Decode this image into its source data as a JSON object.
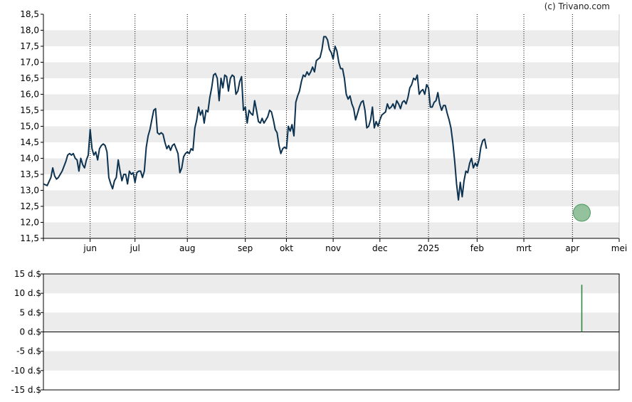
{
  "credit": "(c) Trivano.com",
  "colors": {
    "line": "#0e3350",
    "band": "#ececec",
    "axis": "#000000",
    "grid": "#000000",
    "marker": "#6fae7c",
    "bar": "#2e8b3e"
  },
  "chart_data": [
    {
      "type": "line",
      "title": "",
      "xlabel": "",
      "ylabel": "",
      "ylim": [
        11.5,
        18.5
      ],
      "yticks": [
        "11,5",
        "12,0",
        "12,5",
        "13,0",
        "13,5",
        "14,0",
        "14,5",
        "15,0",
        "15,5",
        "16,0",
        "16,5",
        "17,0",
        "17,5",
        "18,0",
        "18,5"
      ],
      "ytick_values": [
        11.5,
        12.0,
        12.5,
        13.0,
        13.5,
        14.0,
        14.5,
        15.0,
        15.5,
        16.0,
        16.5,
        17.0,
        17.5,
        18.0,
        18.5
      ],
      "xticks": [
        "jun",
        "jul",
        "aug",
        "sep",
        "okt",
        "nov",
        "dec",
        "2025",
        "feb",
        "mrt",
        "apr",
        "mei"
      ],
      "xtick_days": [
        25,
        49,
        77,
        108,
        130,
        155,
        180,
        206,
        232,
        257,
        283,
        308
      ],
      "x_range_days": [
        0,
        308
      ],
      "grid": "vertical dotted lines at month ticks; alternating horizontal bands",
      "marker": {
        "day": 288,
        "value": 12.3
      },
      "series": [
        {
          "points": [
            [
              0,
              13.2
            ],
            [
              2,
              13.15
            ],
            [
              4,
              13.4
            ],
            [
              5,
              13.7
            ],
            [
              6,
              13.45
            ],
            [
              7,
              13.35
            ],
            [
              8,
              13.4
            ],
            [
              10,
              13.6
            ],
            [
              12,
              13.9
            ],
            [
              13,
              14.1
            ],
            [
              14,
              14.15
            ],
            [
              15,
              14.1
            ],
            [
              16,
              14.15
            ],
            [
              17,
              14.0
            ],
            [
              18,
              13.95
            ],
            [
              19,
              13.6
            ],
            [
              20,
              14.0
            ],
            [
              21,
              13.8
            ],
            [
              22,
              13.7
            ],
            [
              23,
              13.95
            ],
            [
              24,
              14.1
            ],
            [
              25,
              14.9
            ],
            [
              26,
              14.3
            ],
            [
              27,
              14.1
            ],
            [
              28,
              14.2
            ],
            [
              29,
              13.95
            ],
            [
              30,
              14.3
            ],
            [
              31,
              14.4
            ],
            [
              32,
              14.45
            ],
            [
              33,
              14.4
            ],
            [
              34,
              14.2
            ],
            [
              35,
              13.4
            ],
            [
              36,
              13.2
            ],
            [
              37,
              13.05
            ],
            [
              38,
              13.3
            ],
            [
              39,
              13.4
            ],
            [
              40,
              13.95
            ],
            [
              41,
              13.6
            ],
            [
              42,
              13.3
            ],
            [
              43,
              13.5
            ],
            [
              44,
              13.5
            ],
            [
              45,
              13.2
            ],
            [
              46,
              13.6
            ],
            [
              47,
              13.5
            ],
            [
              48,
              13.55
            ],
            [
              49,
              13.25
            ],
            [
              50,
              13.55
            ],
            [
              51,
              13.6
            ],
            [
              52,
              13.6
            ],
            [
              53,
              13.4
            ],
            [
              54,
              13.6
            ],
            [
              55,
              14.35
            ],
            [
              56,
              14.7
            ],
            [
              57,
              14.9
            ],
            [
              58,
              15.2
            ],
            [
              59,
              15.5
            ],
            [
              60,
              15.55
            ],
            [
              61,
              14.8
            ],
            [
              62,
              14.75
            ],
            [
              63,
              14.8
            ],
            [
              64,
              14.75
            ],
            [
              65,
              14.5
            ],
            [
              66,
              14.3
            ],
            [
              67,
              14.4
            ],
            [
              68,
              14.25
            ],
            [
              69,
              14.4
            ],
            [
              70,
              14.45
            ],
            [
              71,
              14.3
            ],
            [
              72,
              14.15
            ],
            [
              73,
              13.55
            ],
            [
              74,
              13.7
            ],
            [
              75,
              14.05
            ],
            [
              76,
              14.15
            ],
            [
              77,
              14.2
            ],
            [
              78,
              14.15
            ],
            [
              79,
              14.3
            ],
            [
              80,
              14.25
            ],
            [
              81,
              14.95
            ],
            [
              82,
              15.2
            ],
            [
              83,
              15.6
            ],
            [
              84,
              15.35
            ],
            [
              85,
              15.5
            ],
            [
              86,
              15.1
            ],
            [
              87,
              15.5
            ],
            [
              88,
              15.45
            ],
            [
              89,
              15.9
            ],
            [
              90,
              16.2
            ],
            [
              91,
              16.6
            ],
            [
              92,
              16.65
            ],
            [
              93,
              16.5
            ],
            [
              94,
              15.8
            ],
            [
              95,
              16.5
            ],
            [
              96,
              16.2
            ],
            [
              97,
              16.6
            ],
            [
              98,
              16.55
            ],
            [
              99,
              16.1
            ],
            [
              100,
              16.5
            ],
            [
              101,
              16.6
            ],
            [
              102,
              16.55
            ],
            [
              103,
              16.0
            ],
            [
              104,
              16.1
            ],
            [
              105,
              16.4
            ],
            [
              106,
              16.55
            ],
            [
              107,
              15.5
            ],
            [
              108,
              15.6
            ],
            [
              109,
              15.1
            ],
            [
              110,
              15.5
            ],
            [
              111,
              15.4
            ],
            [
              112,
              15.35
            ],
            [
              113,
              15.8
            ],
            [
              114,
              15.5
            ],
            [
              115,
              15.15
            ],
            [
              116,
              15.1
            ],
            [
              117,
              15.25
            ],
            [
              118,
              15.1
            ],
            [
              119,
              15.2
            ],
            [
              120,
              15.3
            ],
            [
              121,
              15.5
            ],
            [
              122,
              15.45
            ],
            [
              123,
              15.2
            ],
            [
              124,
              14.9
            ],
            [
              125,
              14.8
            ],
            [
              126,
              14.4
            ],
            [
              127,
              14.15
            ],
            [
              128,
              14.3
            ],
            [
              129,
              14.35
            ],
            [
              130,
              14.3
            ],
            [
              131,
              15.0
            ],
            [
              132,
              14.85
            ],
            [
              133,
              15.05
            ],
            [
              134,
              14.7
            ],
            [
              135,
              15.75
            ],
            [
              136,
              15.95
            ],
            [
              137,
              16.1
            ],
            [
              138,
              16.4
            ],
            [
              139,
              16.6
            ],
            [
              140,
              16.55
            ],
            [
              141,
              16.7
            ],
            [
              142,
              16.6
            ],
            [
              143,
              16.7
            ],
            [
              144,
              16.85
            ],
            [
              145,
              16.7
            ],
            [
              146,
              17.05
            ],
            [
              147,
              17.1
            ],
            [
              148,
              17.15
            ],
            [
              149,
              17.4
            ],
            [
              150,
              17.8
            ],
            [
              151,
              17.8
            ],
            [
              152,
              17.7
            ],
            [
              153,
              17.4
            ],
            [
              154,
              17.3
            ],
            [
              155,
              17.1
            ],
            [
              156,
              17.5
            ],
            [
              157,
              17.35
            ],
            [
              158,
              17.0
            ],
            [
              159,
              16.8
            ],
            [
              160,
              16.8
            ],
            [
              161,
              16.5
            ],
            [
              162,
              16.0
            ],
            [
              163,
              15.85
            ],
            [
              164,
              15.95
            ],
            [
              165,
              15.7
            ],
            [
              166,
              15.55
            ],
            [
              167,
              15.2
            ],
            [
              168,
              15.4
            ],
            [
              169,
              15.6
            ],
            [
              170,
              15.75
            ],
            [
              171,
              15.8
            ],
            [
              172,
              15.5
            ],
            [
              173,
              14.95
            ],
            [
              174,
              15.0
            ],
            [
              175,
              15.2
            ],
            [
              176,
              15.6
            ],
            [
              177,
              14.95
            ],
            [
              178,
              15.15
            ],
            [
              179,
              15.0
            ],
            [
              180,
              15.2
            ],
            [
              181,
              15.35
            ],
            [
              182,
              15.4
            ],
            [
              183,
              15.45
            ],
            [
              184,
              15.7
            ],
            [
              185,
              15.55
            ],
            [
              186,
              15.6
            ],
            [
              187,
              15.7
            ],
            [
              188,
              15.55
            ],
            [
              189,
              15.8
            ],
            [
              190,
              15.7
            ],
            [
              191,
              15.55
            ],
            [
              192,
              15.75
            ],
            [
              193,
              15.8
            ],
            [
              194,
              15.7
            ],
            [
              195,
              15.9
            ],
            [
              196,
              16.2
            ],
            [
              197,
              16.3
            ],
            [
              198,
              16.5
            ],
            [
              199,
              16.45
            ],
            [
              200,
              16.6
            ],
            [
              201,
              16.0
            ],
            [
              202,
              16.1
            ],
            [
              203,
              16.15
            ],
            [
              204,
              16.0
            ],
            [
              205,
              16.3
            ],
            [
              206,
              16.2
            ],
            [
              207,
              15.6
            ],
            [
              208,
              15.6
            ],
            [
              209,
              15.75
            ],
            [
              210,
              15.8
            ],
            [
              211,
              16.05
            ],
            [
              212,
              15.7
            ],
            [
              213,
              15.5
            ],
            [
              214,
              15.65
            ],
            [
              215,
              15.65
            ],
            [
              216,
              15.4
            ],
            [
              217,
              15.2
            ],
            [
              218,
              14.95
            ],
            [
              219,
              14.5
            ],
            [
              220,
              13.9
            ],
            [
              221,
              13.2
            ],
            [
              222,
              12.7
            ],
            [
              223,
              13.25
            ],
            [
              224,
              12.8
            ],
            [
              225,
              13.3
            ],
            [
              226,
              13.6
            ],
            [
              227,
              13.55
            ],
            [
              228,
              13.85
            ],
            [
              229,
              14.0
            ],
            [
              230,
              13.7
            ],
            [
              231,
              13.85
            ],
            [
              232,
              13.75
            ],
            [
              233,
              13.95
            ],
            [
              234,
              14.35
            ],
            [
              235,
              14.55
            ],
            [
              236,
              14.6
            ],
            [
              237,
              14.3
            ]
          ]
        }
      ]
    },
    {
      "type": "bar",
      "title": "",
      "xlabel": "",
      "ylabel": "",
      "ylim": [
        -15,
        15
      ],
      "yticks": [
        "15 d.$",
        "10 d.$",
        "5 d.$",
        "0 d.$",
        "-5 d.$",
        "-10 d.$",
        "-15 d.$"
      ],
      "ytick_values": [
        15,
        10,
        5,
        0,
        -5,
        -10,
        -15
      ],
      "x_range_days": [
        0,
        308
      ],
      "series": [
        {
          "points": [
            [
              288,
              12.2
            ]
          ]
        }
      ]
    }
  ]
}
